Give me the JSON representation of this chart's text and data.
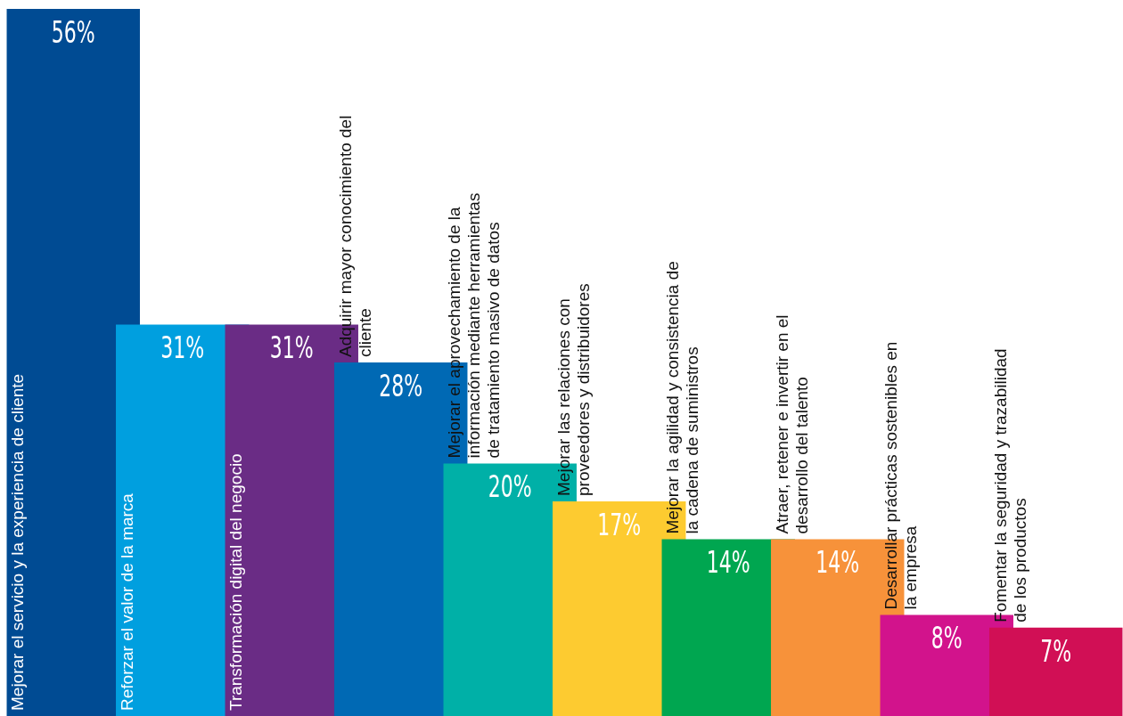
{
  "chart_data": {
    "type": "bar",
    "categories": [
      "Mejorar el servicio y la experiencia de cliente",
      "Reforzar el valor de la marca",
      "Transformación digital del negocio",
      "Adquirir mayor conocimiento del cliente",
      "Mejorar el aprovechamiento de la información mediante herramientas de tratamiento masivo de datos",
      "Mejorar las relaciones con proveedores y distribuidores",
      "Mejorar la agilidad y consistencia de la cadena de suministros",
      "Atraer, retener e invertir en el desarrollo del talento",
      "Desarrollar prácticas sostenibles en la empresa",
      "Fomentar la seguridad y trazabilidad de los productos"
    ],
    "values": [
      56,
      31,
      31,
      28,
      20,
      17,
      14,
      14,
      8,
      7
    ],
    "value_labels": [
      "56%",
      "31%",
      "31%",
      "28%",
      "20%",
      "17%",
      "14%",
      "14%",
      "8%",
      "7%"
    ],
    "colors": [
      "#004b93",
      "#009fdf",
      "#6a2c85",
      "#0069b4",
      "#00b0a7",
      "#fdcb30",
      "#00a650",
      "#f7923a",
      "#d2138c",
      "#d10f55"
    ],
    "tick_labels": false
  }
}
